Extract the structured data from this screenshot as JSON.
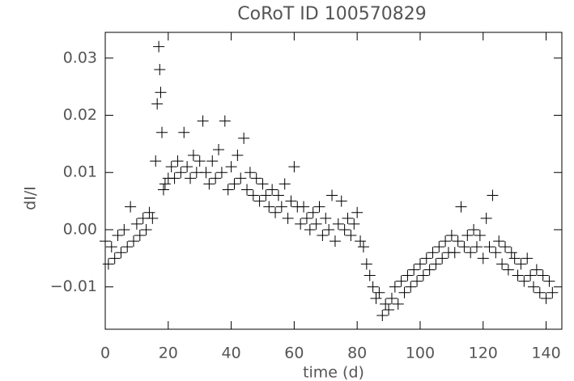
{
  "chart_data": {
    "type": "scatter",
    "title": "CoRoT ID 100570829",
    "x_label": "time (d)",
    "y_label": "dI/I",
    "color": "#000000",
    "xlim": [
      0,
      145
    ],
    "xticks": [
      0,
      20,
      40,
      60,
      80,
      100,
      120,
      140
    ],
    "ylim": [
      -0.0174,
      0.0345
    ],
    "yticks": [
      {
        "value": -0.01,
        "label": "−0.01"
      },
      {
        "value": 0,
        "label": "0.00"
      },
      0.01,
      0.02,
      0.03
    ],
    "x": [
      0,
      1,
      2,
      3,
      4,
      5,
      6,
      7,
      8,
      9,
      10,
      11,
      12,
      13,
      14,
      15,
      16,
      16.5,
      17,
      17.3,
      17.6,
      18,
      18.5,
      19,
      20,
      21,
      22,
      23,
      24,
      25,
      26,
      27,
      28,
      29,
      30,
      31,
      32,
      33,
      34,
      35,
      36,
      37,
      38,
      39,
      40,
      41,
      42,
      43,
      44,
      45,
      46,
      47,
      48,
      49,
      50,
      51,
      52,
      53,
      54,
      55,
      56,
      57,
      58,
      59,
      60,
      61,
      62,
      63,
      64,
      65,
      66,
      67,
      68,
      69,
      70,
      71,
      72,
      73,
      74,
      75,
      76,
      77,
      78,
      79,
      80,
      81,
      82,
      83,
      84,
      85,
      86,
      87,
      88,
      89,
      90,
      91,
      92,
      93,
      94,
      95,
      96,
      97,
      98,
      99,
      100,
      101,
      102,
      103,
      104,
      105,
      106,
      107,
      108,
      109,
      110,
      111,
      112,
      113,
      114,
      115,
      116,
      117,
      118,
      119,
      120,
      121,
      122,
      123,
      124,
      125,
      126,
      127,
      128,
      129,
      130,
      131,
      132,
      133,
      134,
      135,
      136,
      137,
      138,
      139,
      140,
      141,
      142
    ],
    "values": [
      -0.002,
      -0.006,
      -0.003,
      -0.005,
      -0.001,
      -0.004,
      0.0,
      -0.003,
      0.004,
      -0.002,
      0.001,
      -0.001,
      0.002,
      0.0,
      0.003,
      0.002,
      0.012,
      0.022,
      0.032,
      0.028,
      0.024,
      0.017,
      0.007,
      0.008,
      0.009,
      0.011,
      0.009,
      0.012,
      0.01,
      0.017,
      0.011,
      0.009,
      0.013,
      0.01,
      0.012,
      0.019,
      0.01,
      0.008,
      0.012,
      0.009,
      0.014,
      0.01,
      0.019,
      0.007,
      0.011,
      0.008,
      0.013,
      0.009,
      0.016,
      0.007,
      0.01,
      0.006,
      0.009,
      0.005,
      0.008,
      0.006,
      0.004,
      0.007,
      0.003,
      0.006,
      0.004,
      0.008,
      0.002,
      0.005,
      0.011,
      0.004,
      0.001,
      0.004,
      0.002,
      0.0,
      0.003,
      0.001,
      0.004,
      -0.001,
      0.002,
      0.0,
      0.006,
      -0.002,
      0.001,
      0.005,
      0.0,
      0.002,
      -0.001,
      0.001,
      0.003,
      -0.002,
      -0.003,
      -0.006,
      -0.008,
      -0.01,
      -0.012,
      -0.011,
      -0.015,
      -0.013,
      -0.014,
      -0.012,
      -0.01,
      -0.013,
      -0.009,
      -0.011,
      -0.008,
      -0.01,
      -0.007,
      -0.009,
      -0.006,
      -0.008,
      -0.005,
      -0.007,
      -0.004,
      -0.006,
      -0.003,
      -0.005,
      -0.002,
      -0.004,
      -0.001,
      -0.004,
      -0.002,
      0.004,
      -0.003,
      -0.001,
      -0.004,
      0.0,
      -0.003,
      -0.001,
      -0.005,
      0.002,
      -0.003,
      0.006,
      -0.004,
      -0.002,
      -0.006,
      -0.003,
      -0.007,
      -0.004,
      -0.005,
      -0.008,
      -0.006,
      -0.009,
      -0.005,
      -0.008,
      -0.01,
      -0.007,
      -0.011,
      -0.008,
      -0.012,
      -0.009,
      -0.011
    ]
  }
}
